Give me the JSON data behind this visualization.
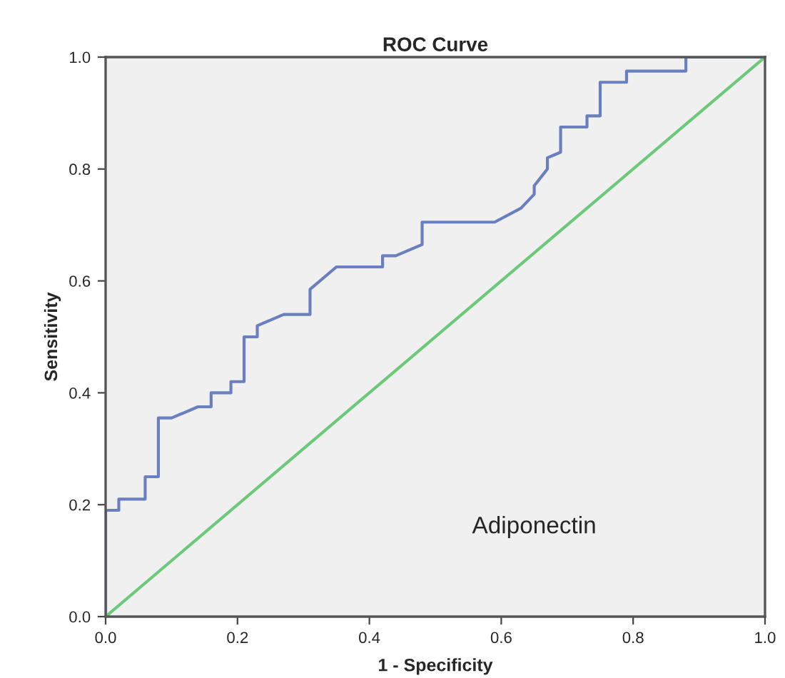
{
  "chart_data": {
    "type": "line",
    "title": "ROC Curve",
    "xlabel": "1 - Specificity",
    "ylabel": "Sensitivity",
    "xlim": [
      0,
      1
    ],
    "ylim": [
      0,
      1
    ],
    "xticks": [
      {
        "value": 0,
        "label": "0.0"
      },
      {
        "value": 0.2,
        "label": "0.2"
      },
      {
        "value": 0.4,
        "label": "0.4"
      },
      {
        "value": 0.6,
        "label": "0.6"
      },
      {
        "value": 0.8,
        "label": "0.8"
      },
      {
        "value": 1,
        "label": "1.0"
      }
    ],
    "yticks": [
      {
        "value": 0,
        "label": "0.0"
      },
      {
        "value": 0.2,
        "label": "0.2"
      },
      {
        "value": 0.4,
        "label": "0.4"
      },
      {
        "value": 0.6,
        "label": "0.6"
      },
      {
        "value": 0.8,
        "label": "0.8"
      },
      {
        "value": 1,
        "label": "1.0"
      }
    ],
    "grid": false,
    "marker": "none",
    "line_style": "solid",
    "series": [
      {
        "color": "#6a7fc0",
        "x": [
          0,
          0,
          0.02,
          0.02,
          0.06,
          0.06,
          0.08,
          0.08,
          0.1,
          0.14,
          0.16,
          0.16,
          0.19,
          0.19,
          0.21,
          0.21,
          0.23,
          0.23,
          0.27,
          0.31,
          0.31,
          0.35,
          0.42,
          0.42,
          0.44,
          0.48,
          0.48,
          0.59,
          0.63,
          0.65,
          0.65,
          0.67,
          0.67,
          0.69,
          0.69,
          0.73,
          0.73,
          0.75,
          0.75,
          0.79,
          0.79,
          0.88,
          0.88,
          1
        ],
        "values": [
          0,
          0.19,
          0.19,
          0.21,
          0.21,
          0.25,
          0.25,
          0.355,
          0.355,
          0.375,
          0.375,
          0.4,
          0.4,
          0.42,
          0.42,
          0.5,
          0.5,
          0.52,
          0.54,
          0.54,
          0.585,
          0.625,
          0.625,
          0.645,
          0.645,
          0.665,
          0.705,
          0.705,
          0.73,
          0.755,
          0.77,
          0.8,
          0.82,
          0.83,
          0.875,
          0.875,
          0.895,
          0.895,
          0.955,
          0.955,
          0.975,
          0.975,
          1,
          1
        ]
      },
      {
        "color": "#6cc97a",
        "x": [
          0,
          1
        ],
        "values": [
          0,
          1
        ]
      }
    ],
    "annotations": [
      "Adiponectin"
    ]
  }
}
